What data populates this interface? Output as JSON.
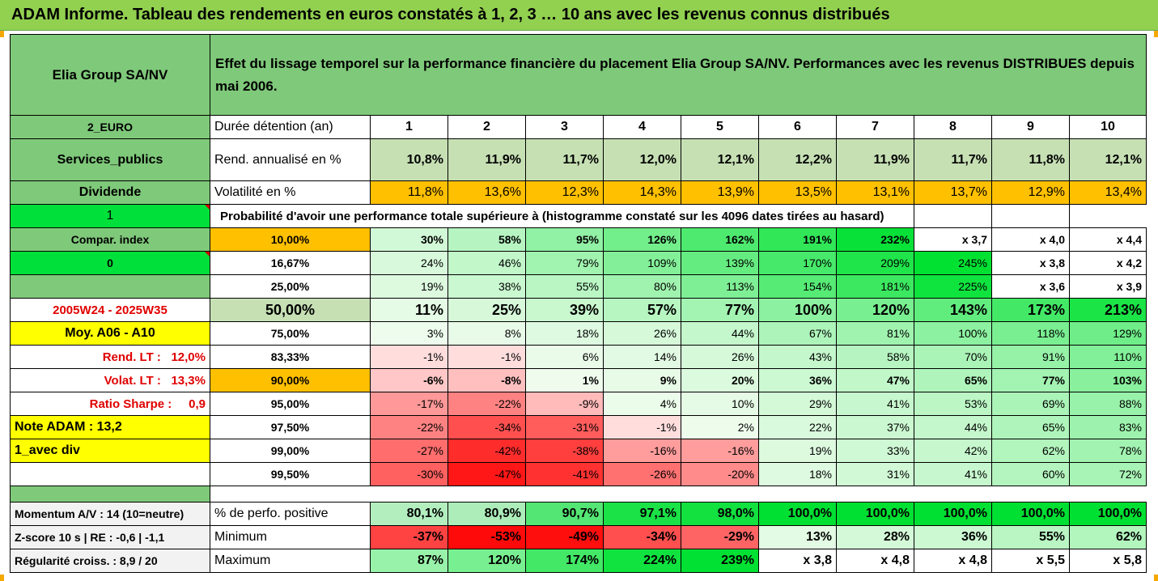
{
  "title": "ADAM Informe. Tableau des rendements en euros constatés à 1, 2, 3 … 10 ans avec les revenus connus distribués",
  "company": "Elia Group SA/NV",
  "description": "Effet du lissage temporel sur la performance financière du placement Elia Group SA/NV. Performances avec les revenus DISTRIBUES depuis mai 2006.",
  "left": {
    "currency": "2_EURO",
    "sector": "Services_publics",
    "dividend": "Dividende",
    "one": "1",
    "compar": "Compar. index",
    "zero": "0",
    "period": "2005W24 - 2025W35",
    "moy": "Moy. A06 - A10",
    "rend_lt_label": "Rend. LT :",
    "rend_lt_value": "12,0%",
    "volat_lt_label": "Volat. LT :",
    "volat_lt_value": "13,3%",
    "sharpe_label": "Ratio Sharpe :",
    "sharpe_value": "0,9",
    "note": "Note ADAM : 13,2",
    "avec_div": "1_avec div",
    "momentum": "Momentum A/V : 14 (10=neutre)",
    "zscore": "Z-score 10 s  |  RE : -0,6  |  -1,1",
    "regularite": "Régularité croiss. : 8,9 / 20"
  },
  "duration_label": "Durée détention (an)",
  "years": [
    "1",
    "2",
    "3",
    "4",
    "5",
    "6",
    "7",
    "8",
    "9",
    "10"
  ],
  "rend_label": "Rend. annualisé en %",
  "rend": [
    "10,8%",
    "11,9%",
    "11,7%",
    "12,0%",
    "12,1%",
    "12,2%",
    "11,9%",
    "11,7%",
    "11,8%",
    "12,1%"
  ],
  "vol_label": "Volatilité en %",
  "vol": [
    "11,8%",
    "13,6%",
    "12,3%",
    "14,3%",
    "13,9%",
    "13,5%",
    "13,1%",
    "13,7%",
    "12,9%",
    "13,4%"
  ],
  "prob_header": "Probabilité d'avoir une performance totale supérieure à (histogramme constaté sur les 4096 dates tirées au hasard)",
  "prob_rows": [
    {
      "p": "10,00%",
      "v": [
        "30%",
        "58%",
        "95%",
        "126%",
        "162%",
        "191%",
        "232%",
        "x 3,7",
        "x 4,0",
        "x 4,4"
      ]
    },
    {
      "p": "16,67%",
      "v": [
        "24%",
        "46%",
        "79%",
        "109%",
        "139%",
        "170%",
        "209%",
        "245%",
        "x 3,8",
        "x 4,2"
      ]
    },
    {
      "p": "25,00%",
      "v": [
        "19%",
        "38%",
        "55%",
        "80%",
        "113%",
        "154%",
        "181%",
        "225%",
        "x 3,6",
        "x 3,9"
      ]
    },
    {
      "p": "50,00%",
      "v": [
        "11%",
        "25%",
        "39%",
        "57%",
        "77%",
        "100%",
        "120%",
        "143%",
        "173%",
        "213%"
      ]
    },
    {
      "p": "75,00%",
      "v": [
        "3%",
        "8%",
        "18%",
        "26%",
        "44%",
        "67%",
        "81%",
        "100%",
        "118%",
        "129%"
      ]
    },
    {
      "p": "83,33%",
      "v": [
        "-1%",
        "-1%",
        "6%",
        "14%",
        "26%",
        "43%",
        "58%",
        "70%",
        "91%",
        "110%"
      ]
    },
    {
      "p": "90,00%",
      "v": [
        "-6%",
        "-8%",
        "1%",
        "9%",
        "20%",
        "36%",
        "47%",
        "65%",
        "77%",
        "103%"
      ]
    },
    {
      "p": "95,00%",
      "v": [
        "-17%",
        "-22%",
        "-9%",
        "4%",
        "10%",
        "29%",
        "41%",
        "53%",
        "69%",
        "88%"
      ]
    },
    {
      "p": "97,50%",
      "v": [
        "-22%",
        "-34%",
        "-31%",
        "-1%",
        "2%",
        "22%",
        "37%",
        "44%",
        "65%",
        "83%"
      ]
    },
    {
      "p": "99,00%",
      "v": [
        "-27%",
        "-42%",
        "-38%",
        "-16%",
        "-16%",
        "19%",
        "33%",
        "42%",
        "62%",
        "78%"
      ]
    },
    {
      "p": "99,50%",
      "v": [
        "-30%",
        "-47%",
        "-41%",
        "-26%",
        "-20%",
        "18%",
        "31%",
        "41%",
        "60%",
        "72%"
      ]
    }
  ],
  "perf_label": "% de perfo. positive",
  "perf": [
    "80,1%",
    "80,9%",
    "90,7%",
    "97,1%",
    "98,0%",
    "100,0%",
    "100,0%",
    "100,0%",
    "100,0%",
    "100,0%"
  ],
  "min_label": "Minimum",
  "min": [
    "-37%",
    "-53%",
    "-49%",
    "-34%",
    "-29%",
    "13%",
    "28%",
    "36%",
    "55%",
    "62%"
  ],
  "max_label": "Maximum",
  "max": [
    "87%",
    "120%",
    "174%",
    "224%",
    "239%",
    "x 3,8",
    "x 4,8",
    "x 4,8",
    "x 5,5",
    "x 5,8"
  ],
  "colors": {
    "banner": "#92d050",
    "header_green": "#7fc97a",
    "light_green": "#c6e0b4",
    "orange": "#ffc000",
    "bright_green": "#00e03a",
    "yellow": "#ffff00",
    "red_text": "#e00000"
  }
}
